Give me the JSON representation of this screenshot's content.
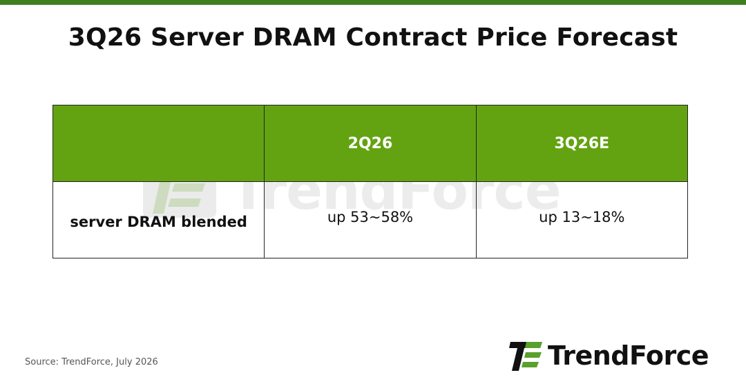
{
  "title": "3Q26 Server DRAM Contract Price Forecast",
  "table": {
    "header": [
      "",
      "2Q26",
      "3Q26E"
    ],
    "rows": [
      {
        "label": "server DRAM blended",
        "values": [
          "up 53~58%",
          "up 13~18%"
        ]
      }
    ]
  },
  "source": "Source: TrendForce, July 2026",
  "logo": {
    "text": "TrendForce",
    "icon": "trendforce-logo-icon"
  },
  "watermark": {
    "text": "TrendForce",
    "icon": "trendforce-logo-icon"
  },
  "colors": {
    "top_bar": "#3f7f1f",
    "header_fill": "#63a312",
    "header_text": "#ffffff",
    "logo_green": "#5aa02c"
  }
}
